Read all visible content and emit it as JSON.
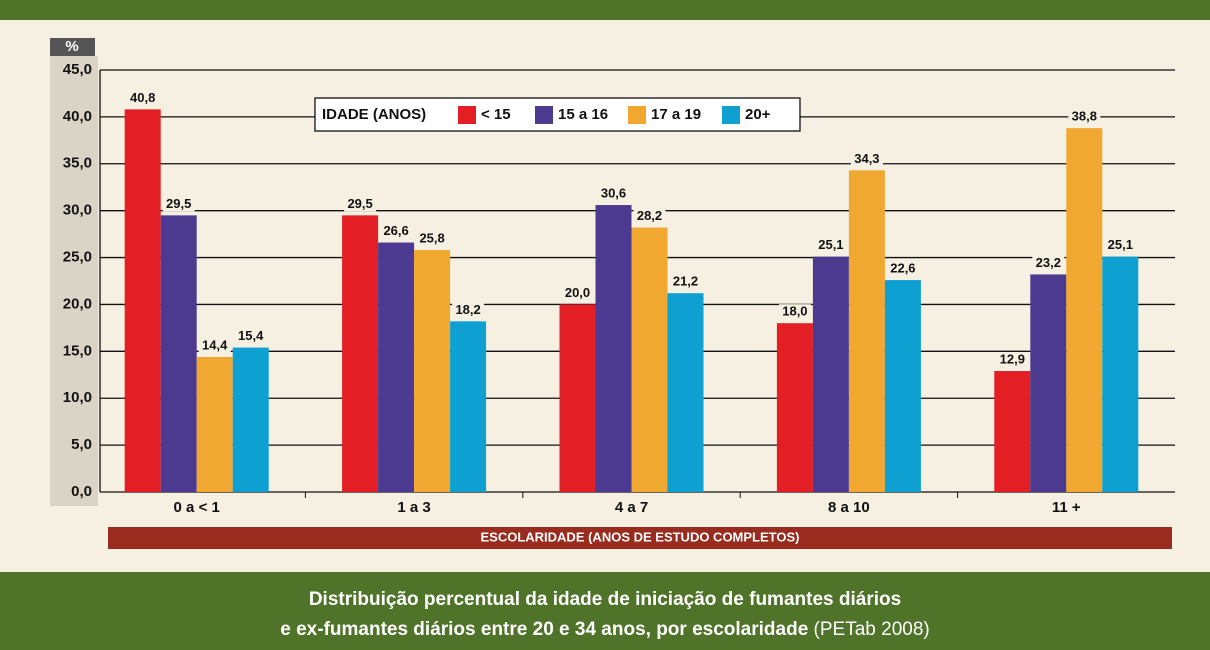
{
  "chart_data": {
    "type": "bar",
    "y_axis_label": "%",
    "x_axis_label": "ESCOLARIDADE (ANOS DE ESTUDO COMPLETOS)",
    "legend_title": "IDADE (ANOS)",
    "categories": [
      "0 a < 1",
      "1 a 3",
      "4 a 7",
      "8 a 10",
      "11 +"
    ],
    "series": [
      {
        "name": "< 15",
        "color": "#e31e24",
        "values": [
          40.8,
          29.5,
          20.0,
          18.0,
          12.9
        ],
        "value_labels": [
          "40,8",
          "29,5",
          "20,0",
          "18,0",
          "12,9"
        ]
      },
      {
        "name": "15 a 16",
        "color": "#4b3a8f",
        "values": [
          29.5,
          26.6,
          30.6,
          25.1,
          23.2
        ],
        "value_labels": [
          "29,5",
          "26,6",
          "30,6",
          "25,1",
          "23,2"
        ]
      },
      {
        "name": "17 a 19",
        "color": "#f0a830",
        "values": [
          14.4,
          25.8,
          28.2,
          34.3,
          38.8
        ],
        "value_labels": [
          "14,4",
          "25,8",
          "28,2",
          "34,3",
          "38,8"
        ]
      },
      {
        "name": "20+",
        "color": "#0ea0d0",
        "values": [
          15.4,
          18.2,
          21.2,
          22.6,
          25.1
        ],
        "value_labels": [
          "15,4",
          "18,2",
          "21,2",
          "22,6",
          "25,1"
        ]
      }
    ],
    "ylim": [
      0,
      45
    ],
    "yticks": [
      {
        "value": 0,
        "label": "0,0"
      },
      {
        "value": 5,
        "label": "5,0"
      },
      {
        "value": 10,
        "label": "10,0"
      },
      {
        "value": 15,
        "label": "15,0"
      },
      {
        "value": 20,
        "label": "20,0"
      },
      {
        "value": 25,
        "label": "25,0"
      },
      {
        "value": 30,
        "label": "30,0"
      },
      {
        "value": 35,
        "label": "35,0"
      },
      {
        "value": 40,
        "label": "40,0"
      },
      {
        "value": 45,
        "label": "45,0"
      }
    ],
    "grid": true,
    "caption_lines": [
      "Distribuição percentual da idade de iniciação de fumantes diários",
      "e ex-fumantes diários entre 20 e 34 anos, por escolaridade"
    ],
    "caption_source": "(PETab 2008)"
  }
}
